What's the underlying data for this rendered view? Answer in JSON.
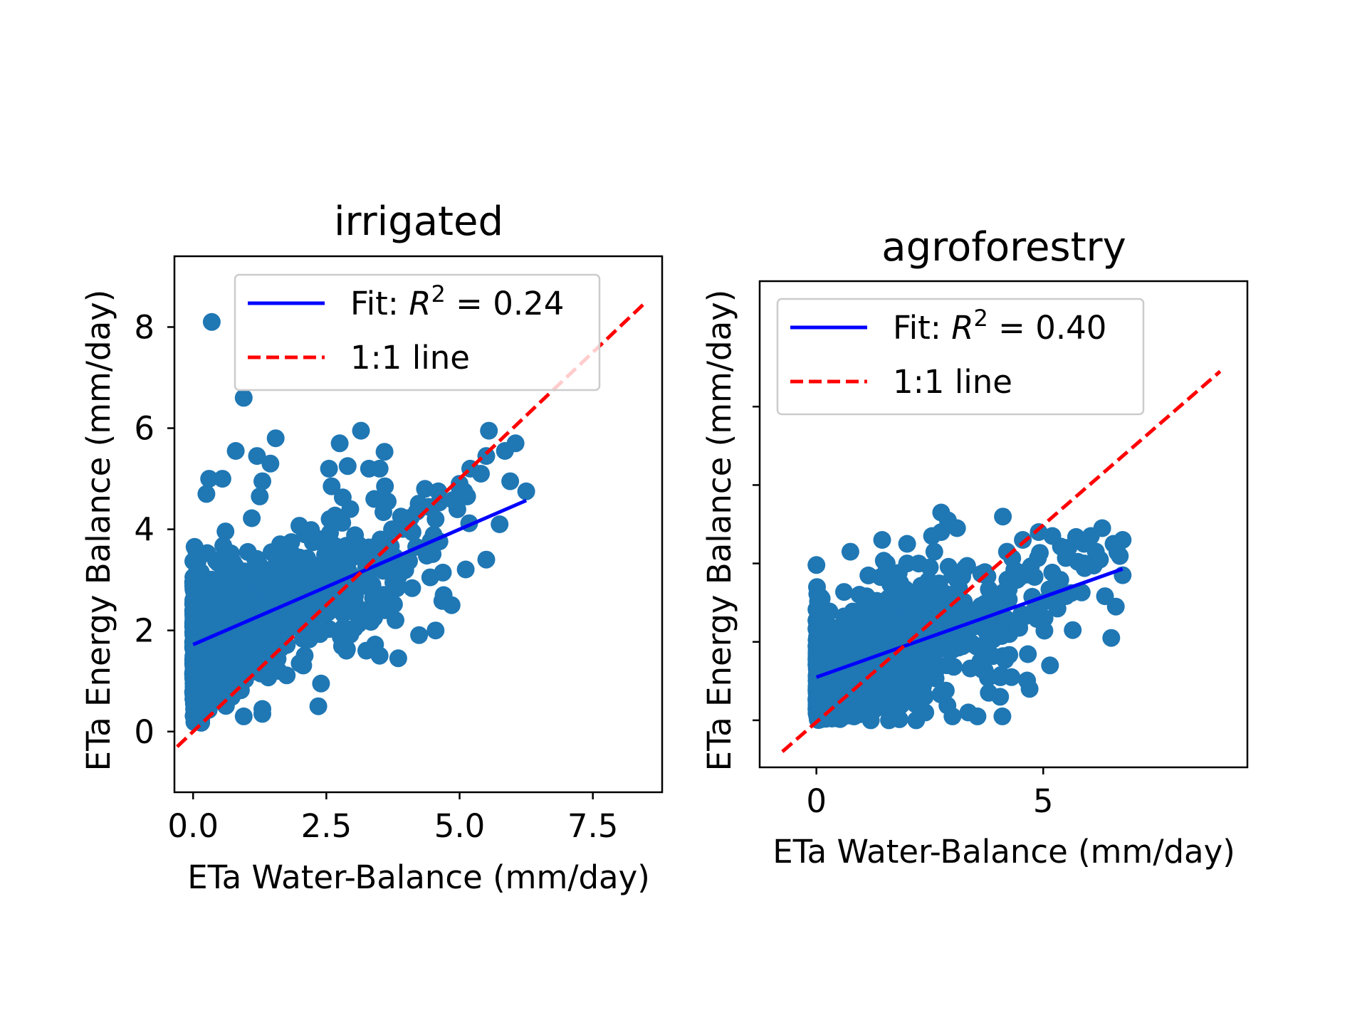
{
  "chart_data": [
    {
      "type": "scatter",
      "title": "irrigated",
      "xlabel": "ETa Water-Balance (mm/day)",
      "ylabel": "ETa Energy Balance (mm/day)",
      "xlim": [
        -0.35,
        8.8
      ],
      "ylim": [
        -1.2,
        9.4
      ],
      "xticks": [
        0.0,
        2.5,
        5.0,
        7.5
      ],
      "xtick_labels": [
        "0.0",
        "2.5",
        "5.0",
        "7.5"
      ],
      "yticks": [
        0,
        2,
        4,
        6,
        8
      ],
      "ytick_labels": [
        "0",
        "2",
        "4",
        "6",
        "8"
      ],
      "legend": {
        "placement": "upper-center",
        "fit_label": "Fit: ",
        "fit_r2": "0.24",
        "oneone_label": "1:1 line"
      },
      "colors": {
        "points": "#1f77b4",
        "fit": "#0000ff",
        "oneone": "#ff0000"
      },
      "fit_line": {
        "x": [
          0.0,
          6.25
        ],
        "y": [
          1.72,
          4.57
        ]
      },
      "one_to_one": {
        "x": [
          -0.3,
          8.5
        ],
        "y": [
          -0.3,
          8.5
        ]
      },
      "cloud": {
        "n": 1400,
        "seed": 11,
        "xmax": 6.25,
        "slope": 0.456,
        "intercept": 1.72,
        "spread": 0.62,
        "xdecay": 1.25,
        "ymin": 0.15
      },
      "points": [
        [
          0.35,
          8.1
        ],
        [
          0.95,
          6.6
        ],
        [
          1.55,
          5.8
        ],
        [
          3.15,
          5.95
        ],
        [
          2.75,
          5.7
        ],
        [
          0.8,
          5.55
        ],
        [
          1.2,
          5.45
        ],
        [
          0.3,
          5.0
        ],
        [
          1.45,
          5.3
        ],
        [
          2.55,
          5.2
        ],
        [
          2.9,
          5.25
        ],
        [
          3.3,
          5.2
        ],
        [
          3.5,
          5.2
        ],
        [
          3.6,
          4.85
        ],
        [
          0.55,
          5.0
        ],
        [
          1.3,
          4.95
        ],
        [
          0.25,
          4.7
        ],
        [
          2.6,
          4.85
        ],
        [
          3.4,
          4.6
        ],
        [
          3.65,
          4.55
        ],
        [
          5.55,
          5.95
        ],
        [
          5.5,
          5.45
        ],
        [
          5.85,
          5.55
        ],
        [
          6.05,
          5.7
        ],
        [
          5.95,
          4.95
        ],
        [
          6.25,
          4.75
        ],
        [
          5.4,
          5.1
        ],
        [
          5.2,
          5.2
        ],
        [
          4.35,
          4.8
        ],
        [
          5.0,
          4.9
        ],
        [
          4.6,
          4.75
        ],
        [
          5.75,
          4.1
        ],
        [
          5.5,
          3.4
        ],
        [
          4.55,
          4.2
        ],
        [
          3.6,
          2.4
        ],
        [
          4.55,
          2.0
        ],
        [
          3.85,
          1.45
        ],
        [
          3.5,
          1.5
        ],
        [
          3.25,
          1.6
        ],
        [
          2.4,
          0.95
        ],
        [
          2.35,
          0.5
        ],
        [
          1.3,
          0.35
        ],
        [
          0.95,
          0.3
        ],
        [
          2.95,
          4.4
        ],
        [
          2.1,
          3.9
        ],
        [
          4.2,
          4.35
        ],
        [
          3.9,
          4.25
        ],
        [
          4.45,
          3.05
        ],
        [
          4.7,
          2.7
        ],
        [
          4.85,
          2.5
        ],
        [
          2.0,
          1.35
        ],
        [
          1.6,
          1.2
        ],
        [
          0.6,
          0.55
        ],
        [
          1.25,
          4.65
        ]
      ]
    },
    {
      "type": "scatter",
      "title": "agroforestry",
      "xlabel": "ETa Water-Balance (mm/day)",
      "ylabel": "ETa Energy Balance (mm/day)",
      "xlim": [
        -1.25,
        9.5
      ],
      "ylim": [
        -0.6,
        5.6
      ],
      "xticks": [
        0,
        5
      ],
      "xtick_labels": [
        "0",
        "5"
      ],
      "yticks": [
        0,
        1,
        2,
        3,
        4
      ],
      "ytick_labels": [
        "",
        "",
        "",
        "",
        ""
      ],
      "legend": {
        "placement": "upper-center",
        "fit_label": "Fit: ",
        "fit_r2": "0.40",
        "oneone_label": "1:1 line"
      },
      "colors": {
        "points": "#1f77b4",
        "fit": "#0000ff",
        "oneone": "#ff0000"
      },
      "fit_line": {
        "x": [
          0.0,
          6.75
        ],
        "y": [
          0.55,
          1.93
        ]
      },
      "one_to_one": {
        "x": [
          -0.75,
          8.9
        ],
        "y": [
          -0.4,
          4.45
        ]
      },
      "cloud": {
        "n": 1400,
        "seed": 23,
        "xmax": 6.75,
        "slope": 0.205,
        "intercept": 0.55,
        "spread": 0.38,
        "xdecay": 1.6,
        "ymin": 0.0
      },
      "points": [
        [
          2.75,
          2.65
        ],
        [
          2.9,
          2.55
        ],
        [
          2.75,
          2.4
        ],
        [
          2.55,
          2.35
        ],
        [
          0.0,
          1.98
        ],
        [
          0.75,
          2.15
        ],
        [
          1.45,
          2.3
        ],
        [
          2.0,
          2.25
        ],
        [
          2.6,
          2.15
        ],
        [
          1.55,
          2.0
        ],
        [
          1.55,
          1.95
        ],
        [
          2.0,
          2.0
        ],
        [
          2.5,
          1.95
        ],
        [
          1.85,
          1.75
        ],
        [
          3.0,
          1.85
        ],
        [
          6.3,
          2.45
        ],
        [
          6.05,
          2.35
        ],
        [
          6.75,
          2.3
        ],
        [
          6.55,
          2.25
        ],
        [
          4.55,
          2.3
        ],
        [
          4.2,
          2.15
        ],
        [
          5.9,
          2.25
        ],
        [
          6.25,
          2.05
        ],
        [
          5.9,
          2.0
        ],
        [
          6.75,
          1.85
        ],
        [
          6.6,
          1.45
        ],
        [
          6.5,
          1.05
        ],
        [
          5.65,
          1.15
        ],
        [
          5.15,
          0.7
        ],
        [
          4.7,
          0.4
        ],
        [
          4.3,
          0.55
        ],
        [
          4.05,
          0.3
        ],
        [
          3.8,
          0.35
        ],
        [
          3.35,
          0.1
        ],
        [
          3.55,
          0.05
        ],
        [
          4.1,
          0.05
        ],
        [
          3.0,
          0.05
        ],
        [
          1.2,
          0.0
        ],
        [
          0.3,
          0.05
        ],
        [
          1.6,
          0.0
        ],
        [
          2.2,
          0.0
        ],
        [
          2.4,
          0.1
        ],
        [
          1.95,
          0.3
        ],
        [
          4.9,
          2.4
        ],
        [
          5.2,
          2.35
        ],
        [
          3.1,
          2.45
        ]
      ]
    }
  ]
}
